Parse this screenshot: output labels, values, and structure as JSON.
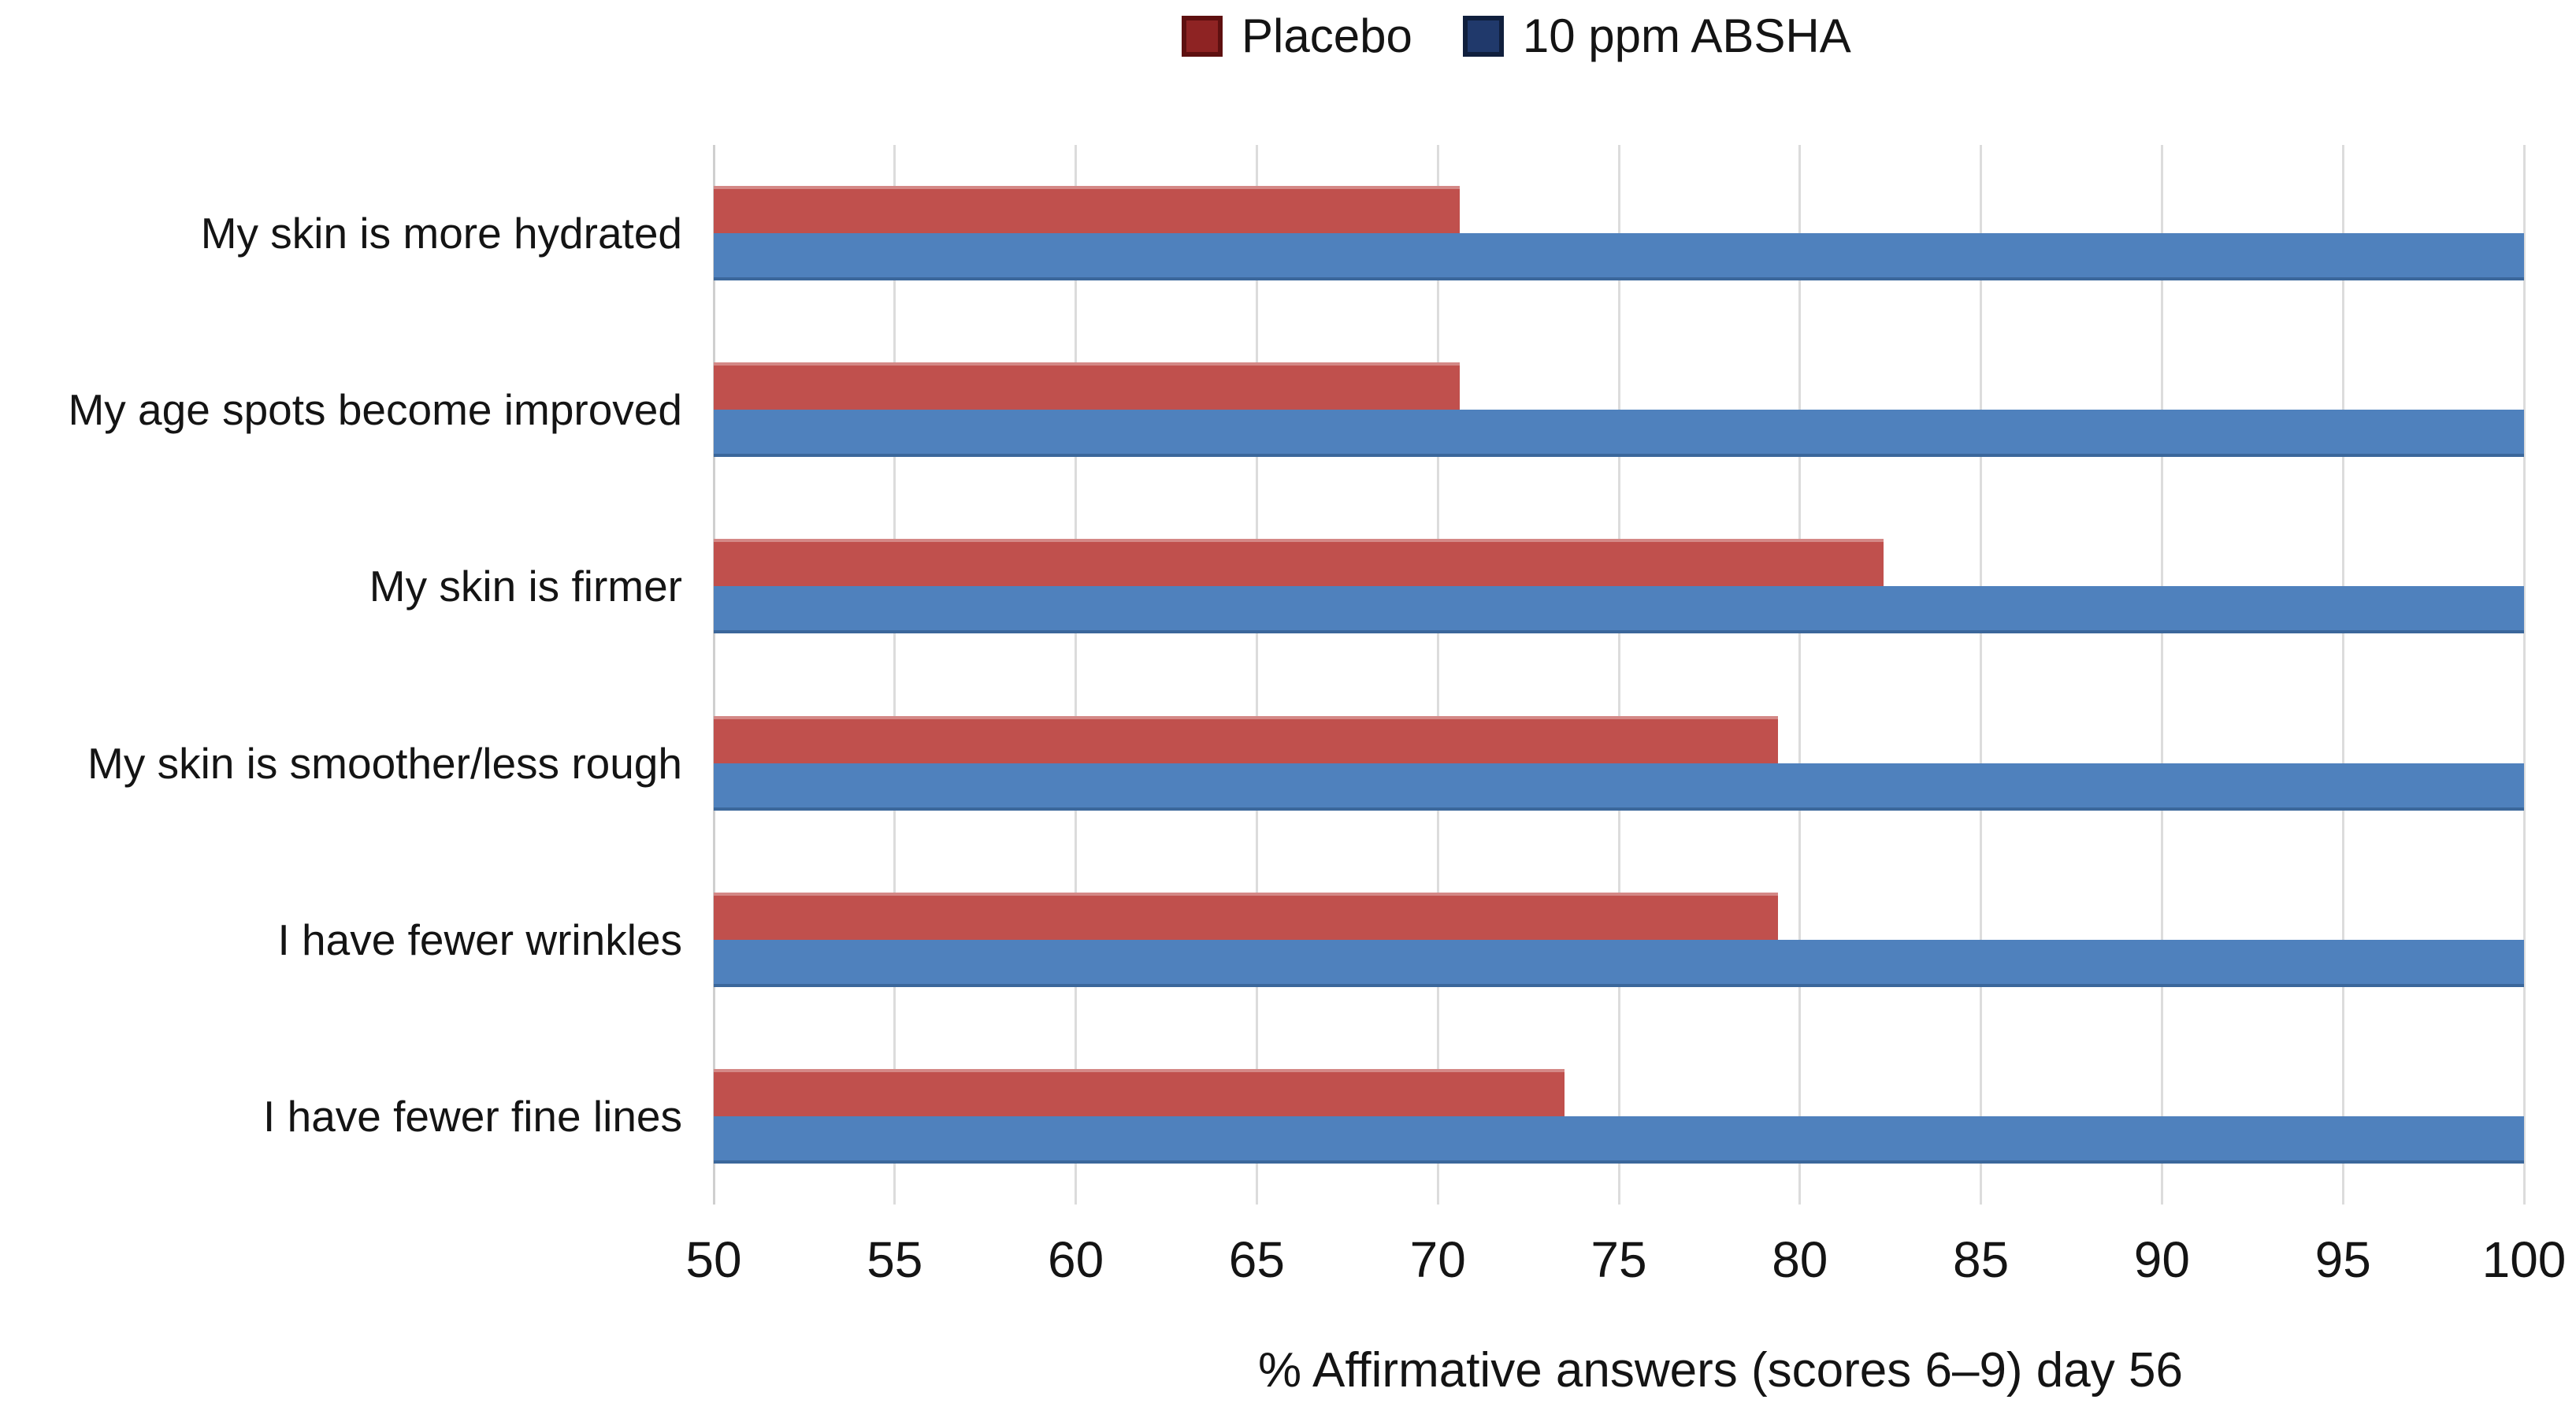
{
  "chart_data": {
    "type": "bar",
    "orientation": "horizontal",
    "title": "",
    "xlabel": "% Affirmative answers (scores 6–9) day 56",
    "ylabel": "",
    "xlim": [
      50,
      100
    ],
    "xticks": [
      50,
      55,
      60,
      65,
      70,
      75,
      80,
      85,
      90,
      95,
      100
    ],
    "grid": true,
    "legend_position": "top-center",
    "background": "#ffffff",
    "gridline_color": "#dcdcdc",
    "axis_edge_color": "#cfcfcf",
    "text_color": "#141414",
    "categories": [
      "My skin is more hydrated",
      "My age spots become improved",
      "My skin is firmer",
      "My skin is smoother/less rough",
      "I have fewer wrinkles",
      "I have fewer fine lines"
    ],
    "series": [
      {
        "name": "Placebo",
        "bar_color": "#C0504D",
        "legend_fill": "#8E2323",
        "legend_border": "#5E1010",
        "values": [
          70.6,
          70.6,
          82.3,
          79.4,
          79.4,
          73.5
        ]
      },
      {
        "name": "10 ppm ABSHA",
        "bar_color": "#4F81BD",
        "legend_fill": "#20396B",
        "legend_border": "#101F3D",
        "values": [
          100,
          100,
          100,
          100,
          100,
          100
        ]
      }
    ]
  }
}
